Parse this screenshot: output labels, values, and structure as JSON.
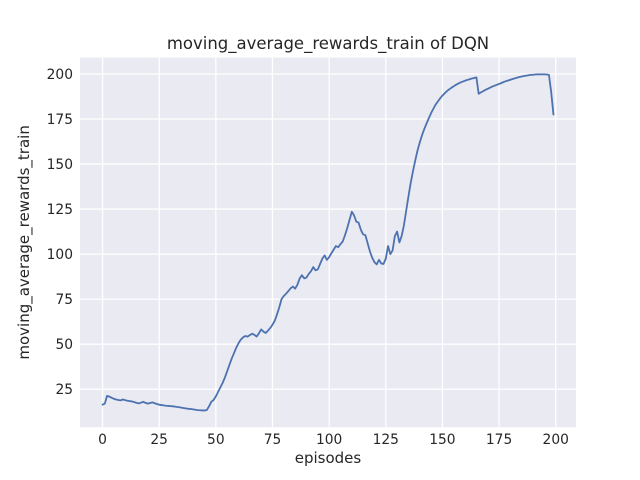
{
  "chart_data": {
    "type": "line",
    "title": "moving_average_rewards_train of DQN",
    "xlabel": "episodes",
    "ylabel": "moving_average_rewards_train",
    "x_ticks": [
      0,
      25,
      50,
      75,
      100,
      125,
      150,
      175,
      200
    ],
    "y_ticks": [
      25,
      50,
      75,
      100,
      125,
      150,
      175,
      200
    ],
    "xlim": [
      -9.95,
      208.95
    ],
    "ylim": [
      3.9,
      209.1
    ],
    "grid": true,
    "legend": "none",
    "style": {
      "figure_bg": "#ffffff",
      "plot_bg": "#eaeaf2",
      "grid_color": "#ffffff",
      "line_color": "#4c72b0",
      "text_color": "#262626"
    },
    "series": [
      {
        "name": "DQN",
        "x_start": 0,
        "x_step": 1,
        "values": [
          16.4,
          17.0,
          21.3,
          20.9,
          20.2,
          19.7,
          19.3,
          19.0,
          18.8,
          19.3,
          18.9,
          18.6,
          18.4,
          18.2,
          17.8,
          17.4,
          17.1,
          17.5,
          18.0,
          17.4,
          17.0,
          17.3,
          17.7,
          17.2,
          16.8,
          16.4,
          16.2,
          16.0,
          15.8,
          15.7,
          15.6,
          15.5,
          15.3,
          15.1,
          15.0,
          14.7,
          14.5,
          14.3,
          14.1,
          14.0,
          13.8,
          13.6,
          13.4,
          13.3,
          13.2,
          13.2,
          13.4,
          15.5,
          18.0,
          19.0,
          21.0,
          23.5,
          26.0,
          28.5,
          31.5,
          35.0,
          38.5,
          42.0,
          45.0,
          48.0,
          50.5,
          52.5,
          53.8,
          54.5,
          54.2,
          55.0,
          55.8,
          55.2,
          54.2,
          56.0,
          58.2,
          57.0,
          56.2,
          57.5,
          59.0,
          60.8,
          63.0,
          66.5,
          70.5,
          75.0,
          76.8,
          78.0,
          79.5,
          81.0,
          82.0,
          80.8,
          83.0,
          86.5,
          88.3,
          86.5,
          87.0,
          89.0,
          90.5,
          92.8,
          91.0,
          91.5,
          94.5,
          97.5,
          99.3,
          96.8,
          98.3,
          100.5,
          102.5,
          104.5,
          103.8,
          105.5,
          107.0,
          110.5,
          114.5,
          119.0,
          123.5,
          121.5,
          118.0,
          117.5,
          113.5,
          111.0,
          110.5,
          106.0,
          101.5,
          98.0,
          95.5,
          94.3,
          96.8,
          94.8,
          94.5,
          97.5,
          104.5,
          100.0,
          102.0,
          110.0,
          112.5,
          106.5,
          110.0,
          116.0,
          124.0,
          132.0,
          139.5,
          146.0,
          152.0,
          157.5,
          162.0,
          166.0,
          169.5,
          172.5,
          175.5,
          178.3,
          180.7,
          183.0,
          184.8,
          186.5,
          188.0,
          189.3,
          190.5,
          191.5,
          192.4,
          193.2,
          194.0,
          194.7,
          195.3,
          195.8,
          196.3,
          196.7,
          197.1,
          197.5,
          197.8,
          198.1,
          189.0,
          189.8,
          190.5,
          191.2,
          191.8,
          192.4,
          193.0,
          193.5,
          194.0,
          194.5,
          195.0,
          195.5,
          196.0,
          196.4,
          196.8,
          197.2,
          197.6,
          198.0,
          198.3,
          198.6,
          198.9,
          199.1,
          199.3,
          199.5,
          199.6,
          199.7,
          199.8,
          199.8,
          199.8,
          199.8,
          199.7,
          199.5,
          190.0,
          177.5
        ]
      }
    ]
  }
}
